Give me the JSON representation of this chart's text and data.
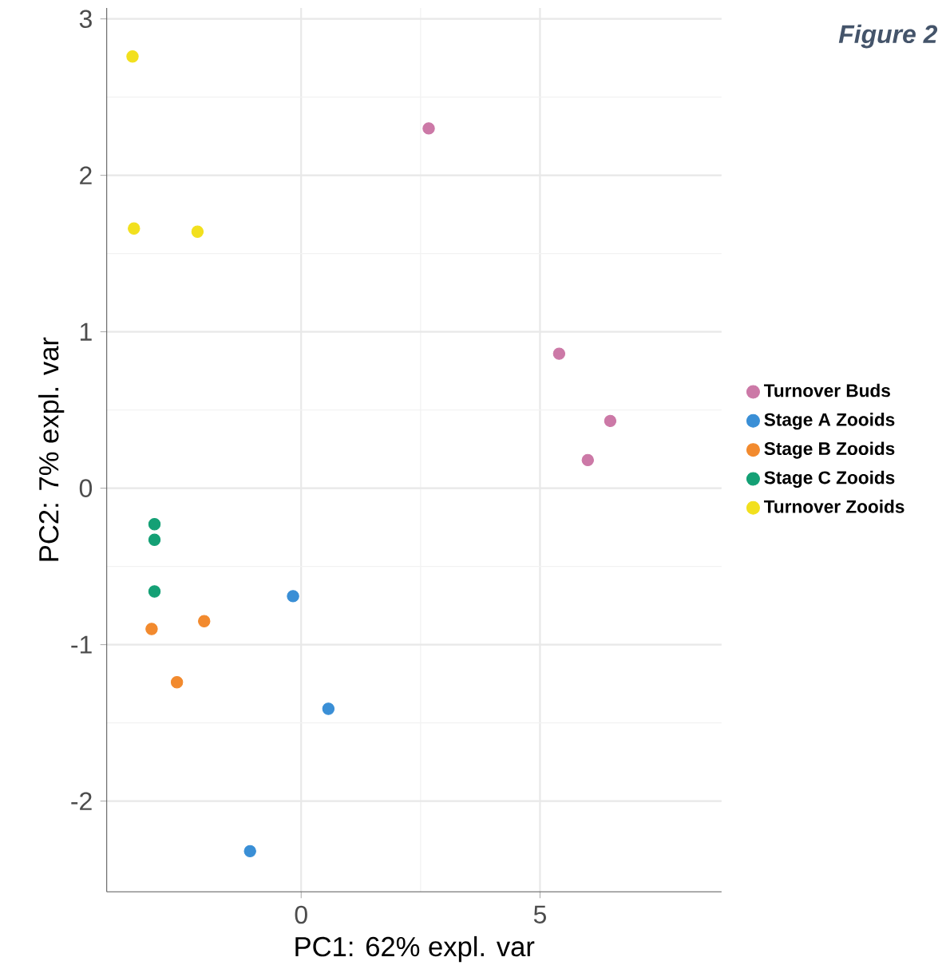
{
  "chart_data": {
    "type": "scatter",
    "xlabel": "PC1: 62% expl. var",
    "ylabel": "PC2: 7% expl. var",
    "annotations": [
      "Figure 2"
    ],
    "xlim": [
      -4.07,
      8.8
    ],
    "ylim": [
      -2.58,
      3.07
    ],
    "xticks": [
      0,
      5
    ],
    "yticks": [
      -2,
      -1,
      0,
      1,
      2,
      3
    ],
    "grid": true,
    "legend": "right",
    "series": [
      {
        "name": "Turnover Buds",
        "color": "#cc79a7",
        "x": [
          2.67,
          5.4,
          6.47,
          6.0
        ],
        "values": [
          2.3,
          0.86,
          0.43,
          0.18
        ]
      },
      {
        "name": "Stage A Zooids",
        "color": "#3a8fd6",
        "x": [
          -0.17,
          0.57,
          -1.07
        ],
        "values": [
          -0.69,
          -1.41,
          -2.32
        ]
      },
      {
        "name": "Stage B Zooids",
        "color": "#f28a2e",
        "x": [
          -3.13,
          -2.03,
          -2.6
        ],
        "values": [
          -0.9,
          -0.85,
          -1.24
        ]
      },
      {
        "name": "Stage C Zooids",
        "color": "#14a075",
        "x": [
          -3.07,
          -3.07,
          -3.07
        ],
        "values": [
          -0.23,
          -0.33,
          -0.66
        ]
      },
      {
        "name": "Turnover Zooids",
        "color": "#f2e01e",
        "x": [
          -3.53,
          -3.5,
          -2.17
        ],
        "values": [
          2.76,
          1.66,
          1.64
        ]
      }
    ]
  }
}
